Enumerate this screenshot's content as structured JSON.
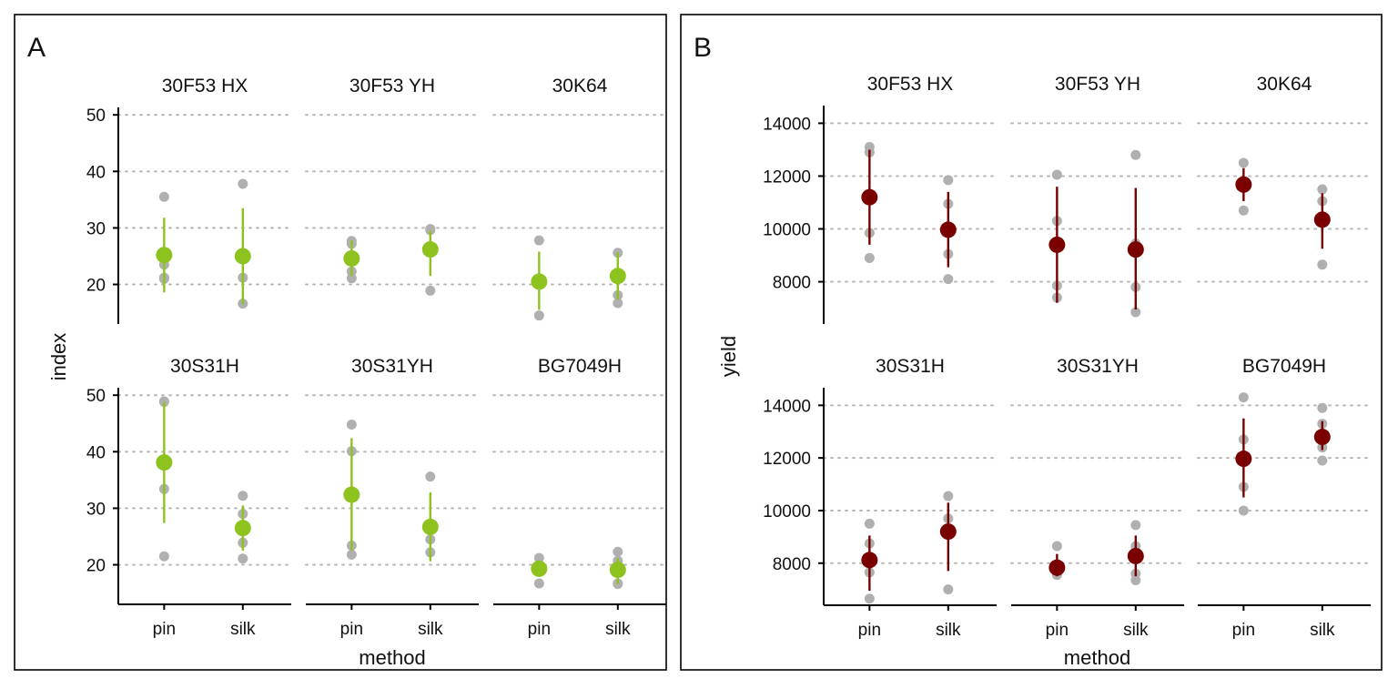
{
  "chart_data": [
    {
      "type": "scatter",
      "tag": "A",
      "xlabel": "method",
      "ylabel": "index",
      "ylim": [
        13,
        51
      ],
      "yticks": [
        20,
        30,
        40,
        50
      ],
      "categories": [
        "pin",
        "silk"
      ],
      "colors": {
        "mean": "#8dc21f",
        "raw": "#b0b0b0",
        "grid": "#b8b8b8",
        "axis": "#000000"
      },
      "grid": true,
      "facets": [
        {
          "name": "30F53 HX",
          "groups": [
            {
              "method": "pin",
              "points": [
                35.5,
                24.5,
                23.5,
                21.2,
                21.0
              ],
              "mean": 25.2,
              "lower": 18.6,
              "upper": 31.8
            },
            {
              "method": "silk",
              "points": [
                37.8,
                24.5,
                21.2,
                16.6
              ],
              "mean": 25.0,
              "lower": 16.5,
              "upper": 33.5
            }
          ]
        },
        {
          "name": "30F53 YH",
          "groups": [
            {
              "method": "pin",
              "points": [
                27.7,
                27.2,
                22.3,
                21.1
              ],
              "mean": 24.6,
              "lower": 21.5,
              "upper": 27.8
            },
            {
              "method": "silk",
              "points": [
                29.8,
                29.6,
                18.9
              ],
              "mean": 26.2,
              "lower": 21.5,
              "upper": 29.5
            }
          ]
        },
        {
          "name": "30K64",
          "groups": [
            {
              "method": "pin",
              "points": [
                27.8,
                14.5
              ],
              "mean": 20.5,
              "lower": 15.5,
              "upper": 25.8
            },
            {
              "method": "silk",
              "points": [
                25.6,
                18.1,
                16.7
              ],
              "mean": 21.5,
              "lower": 17.3,
              "upper": 25.7
            }
          ]
        },
        {
          "name": "30S31H",
          "groups": [
            {
              "method": "pin",
              "points": [
                48.9,
                48.8,
                33.4,
                21.5
              ],
              "mean": 38.1,
              "lower": 27.4,
              "upper": 48.8
            },
            {
              "method": "silk",
              "points": [
                32.2,
                29.0,
                23.9,
                21.1
              ],
              "mean": 26.5,
              "lower": 22.5,
              "upper": 30.5
            }
          ]
        },
        {
          "name": "30S31YH",
          "groups": [
            {
              "method": "pin",
              "points": [
                44.8,
                40.1,
                23.4,
                21.8
              ],
              "mean": 32.4,
              "lower": 22.5,
              "upper": 42.4
            },
            {
              "method": "silk",
              "points": [
                35.6,
                24.5,
                22.2
              ],
              "mean": 26.7,
              "lower": 20.6,
              "upper": 32.8
            }
          ]
        },
        {
          "name": "BG7049H",
          "groups": [
            {
              "method": "pin",
              "points": [
                21.2,
                16.7
              ],
              "mean": 19.3,
              "lower": 18.0,
              "upper": 20.6
            },
            {
              "method": "silk",
              "points": [
                22.3,
                20.7,
                16.7,
                16.6
              ],
              "mean": 19.1,
              "lower": 16.6,
              "upper": 21.2
            }
          ]
        }
      ]
    },
    {
      "type": "scatter",
      "tag": "B",
      "xlabel": "method",
      "ylabel": "yield",
      "ylim": [
        6400,
        14600
      ],
      "yticks": [
        8000,
        10000,
        12000,
        14000
      ],
      "categories": [
        "pin",
        "silk"
      ],
      "colors": {
        "mean": "#7a0000",
        "raw": "#b0b0b0",
        "grid": "#b8b8b8",
        "axis": "#000000"
      },
      "grid": true,
      "facets": [
        {
          "name": "30F53 HX",
          "groups": [
            {
              "method": "pin",
              "points": [
                13100,
                12900,
                9850,
                8900
              ],
              "mean": 11200,
              "lower": 9400,
              "upper": 13000
            },
            {
              "method": "silk",
              "points": [
                11850,
                10950,
                9050,
                8100
              ],
              "mean": 9970,
              "lower": 8550,
              "upper": 11400
            }
          ]
        },
        {
          "name": "30F53 YH",
          "groups": [
            {
              "method": "pin",
              "points": [
                12050,
                10300,
                7850,
                7400
              ],
              "mean": 9400,
              "lower": 7200,
              "upper": 11600
            },
            {
              "method": "silk",
              "points": [
                12800,
                9450,
                7800,
                6850
              ],
              "mean": 9220,
              "lower": 6950,
              "upper": 11550
            }
          ]
        },
        {
          "name": "30K64",
          "groups": [
            {
              "method": "pin",
              "points": [
                12500,
                10700
              ],
              "mean": 11680,
              "lower": 11050,
              "upper": 12300
            },
            {
              "method": "silk",
              "points": [
                11500,
                11050,
                8650
              ],
              "mean": 10350,
              "lower": 9250,
              "upper": 11350
            }
          ]
        },
        {
          "name": "30S31H",
          "groups": [
            {
              "method": "pin",
              "points": [
                9500,
                8750,
                7650,
                6650
              ],
              "mean": 8120,
              "lower": 6950,
              "upper": 9050
            },
            {
              "method": "silk",
              "points": [
                10550,
                9700,
                7000
              ],
              "mean": 9200,
              "lower": 7700,
              "upper": 10300
            }
          ]
        },
        {
          "name": "30S31YH",
          "groups": [
            {
              "method": "pin",
              "points": [
                8650,
                7700,
                7550
              ],
              "mean": 7830,
              "lower": 7500,
              "upper": 8350
            },
            {
              "method": "silk",
              "points": [
                9450,
                8650,
                7600,
                7350
              ],
              "mean": 8270,
              "lower": 7500,
              "upper": 9050
            }
          ]
        },
        {
          "name": "BG7049H",
          "groups": [
            {
              "method": "pin",
              "points": [
                14300,
                12700,
                10900,
                10000
              ],
              "mean": 11970,
              "lower": 10500,
              "upper": 13500
            },
            {
              "method": "silk",
              "points": [
                13900,
                13300,
                12400,
                11900
              ],
              "mean": 12800,
              "lower": 12300,
              "upper": 13400
            }
          ]
        }
      ]
    }
  ]
}
